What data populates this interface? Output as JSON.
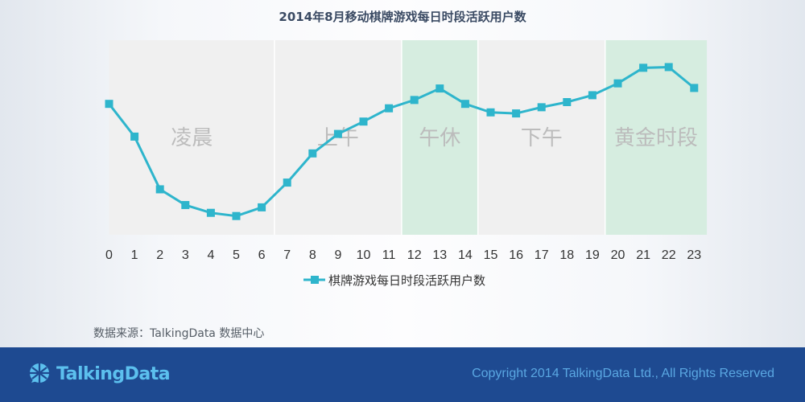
{
  "title": "2014年8月移动棋牌游戏每日时段活跃用户数",
  "source": "数据来源：TalkingData 数据中心",
  "footer": {
    "logo_text": "TalkingData",
    "copyright": "Copyright 2014 TalkingData Ltd., All Rights Reserved"
  },
  "colors": {
    "line": "#2eb5cc",
    "band_gray": "#f0f0f0",
    "band_green": "#d6ede0",
    "band_label": "#bcbcbc",
    "footer_bg": "#1e4a91"
  },
  "chart_data": {
    "type": "line",
    "title": "2014年8月移动棋牌游戏每日时段活跃用户数",
    "x": [
      0,
      1,
      2,
      3,
      4,
      5,
      6,
      7,
      8,
      9,
      10,
      11,
      12,
      13,
      14,
      15,
      16,
      17,
      18,
      19,
      20,
      21,
      22,
      23
    ],
    "series": [
      {
        "name": "棋牌游戏每日时段活跃用户数",
        "values": [
          0.74,
          0.555,
          0.257,
          0.168,
          0.124,
          0.106,
          0.155,
          0.295,
          0.46,
          0.57,
          0.64,
          0.715,
          0.762,
          0.827,
          0.74,
          0.692,
          0.686,
          0.721,
          0.75,
          0.789,
          0.856,
          0.944,
          0.948,
          0.83
        ]
      }
    ],
    "ylim": [
      0,
      1.1
    ],
    "y_axis_visible": false,
    "legend": "bottom",
    "marker": "square",
    "bands": [
      {
        "label": "凌晨",
        "from": 0,
        "to": 6.5,
        "style": "gray"
      },
      {
        "label": "上午",
        "from": 6.5,
        "to": 11.5,
        "style": "gray"
      },
      {
        "label": "午休",
        "from": 11.5,
        "to": 14.5,
        "style": "green"
      },
      {
        "label": "下午",
        "from": 14.5,
        "to": 19.5,
        "style": "gray"
      },
      {
        "label": "黄金时段",
        "from": 19.5,
        "to": 23.5,
        "style": "green"
      }
    ]
  }
}
